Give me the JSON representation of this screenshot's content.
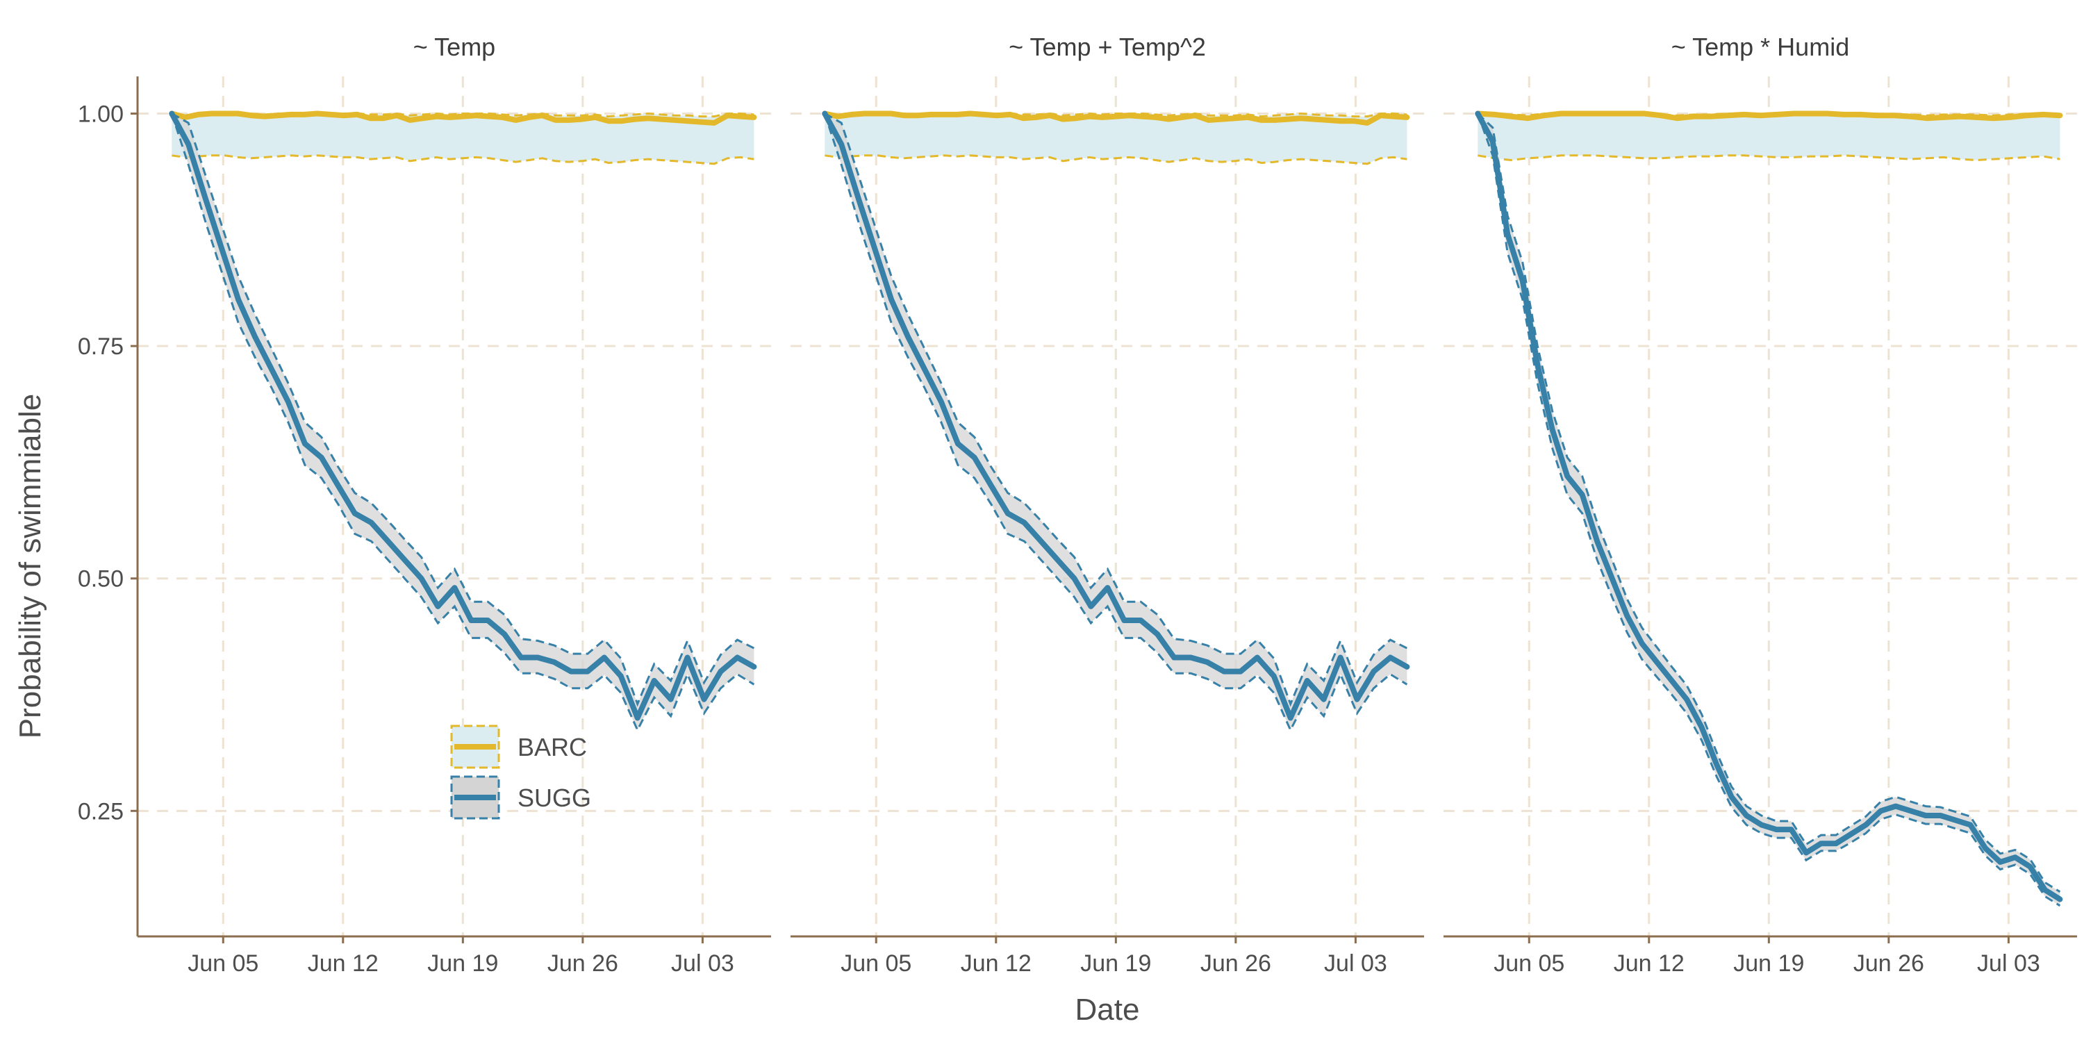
{
  "chart_data": {
    "type": "line",
    "facets": [
      "~ Temp",
      "~ Temp + Temp^2",
      "~ Temp * Humid"
    ],
    "xlabel": "Date",
    "ylabel": "Probability of swimmiable",
    "x_start": "2021-05-31",
    "x_ticks": [
      "Jun 05",
      "Jun 12",
      "Jun 19",
      "Jun 26",
      "Jul 03"
    ],
    "y_ticks": [
      "0.25",
      "0.50",
      "0.75",
      "1.00"
    ],
    "ylim": [
      0.115,
      1.04
    ],
    "grid": true,
    "legend": {
      "position": "inside bottom-left of first panel",
      "entries": [
        "BARC",
        "SUGG"
      ]
    },
    "colors": {
      "BARC": "#e3b92b",
      "SUGG": "#3781a8",
      "BARC_band": "#dcedf2",
      "SUGG_band": "#d4d4d4",
      "axis": "#8b6d4f",
      "grid": "#eee2d2"
    },
    "series_names": [
      "BARC",
      "SUGG"
    ],
    "panels": [
      {
        "BARC": {
          "mean": [
            1.0,
            0.996,
            0.999,
            1.0,
            1.0,
            1.0,
            0.998,
            0.997,
            0.998,
            0.999,
            0.999,
            1.0,
            0.999,
            0.998,
            0.999,
            0.995,
            0.995,
            0.998,
            0.993,
            0.995,
            0.997,
            0.996,
            0.997,
            0.998,
            0.997,
            0.996,
            0.993,
            0.996,
            0.998,
            0.993,
            0.993,
            0.994,
            0.996,
            0.992,
            0.992,
            0.994,
            0.995,
            0.994,
            0.993,
            0.992,
            0.991,
            0.99,
            0.998,
            0.997,
            0.996
          ],
          "lower": [
            0.955,
            0.953,
            0.954,
            0.955,
            0.955,
            0.953,
            0.952,
            0.953,
            0.954,
            0.955,
            0.954,
            0.955,
            0.954,
            0.953,
            0.953,
            0.951,
            0.952,
            0.953,
            0.949,
            0.951,
            0.953,
            0.951,
            0.952,
            0.953,
            0.952,
            0.95,
            0.948,
            0.95,
            0.952,
            0.949,
            0.948,
            0.949,
            0.951,
            0.947,
            0.948,
            0.95,
            0.951,
            0.95,
            0.949,
            0.948,
            0.947,
            0.946,
            0.952,
            0.953,
            0.951
          ],
          "upper": [
            1.0,
            0.998,
            1.0,
            1.0,
            1.0,
            1.0,
            1.0,
            0.999,
            1.0,
            1.0,
            1.0,
            1.0,
            1.0,
            1.0,
            1.0,
            0.999,
            0.999,
            1.0,
            0.998,
            0.999,
            1.0,
            0.999,
            1.0,
            1.0,
            1.0,
            0.999,
            0.998,
            0.999,
            1.0,
            0.998,
            0.998,
            0.998,
            0.999,
            0.997,
            0.998,
            0.999,
            1.0,
            0.999,
            0.998,
            0.998,
            0.997,
            0.997,
            1.0,
            1.0,
            0.999
          ]
        },
        "SUGG": {
          "mean": [
            1.0,
            0.967,
            0.91,
            0.855,
            0.8,
            0.76,
            0.725,
            0.69,
            0.645,
            0.63,
            0.6,
            0.57,
            0.56,
            0.54,
            0.52,
            0.5,
            0.47,
            0.49,
            0.455,
            0.455,
            0.44,
            0.415,
            0.415,
            0.41,
            0.4,
            0.4,
            0.415,
            0.395,
            0.35,
            0.39,
            0.37,
            0.415,
            0.37,
            0.4,
            0.415,
            0.405
          ],
          "lower": [
            1.0,
            0.945,
            0.885,
            0.83,
            0.775,
            0.738,
            0.705,
            0.668,
            0.622,
            0.608,
            0.58,
            0.548,
            0.54,
            0.52,
            0.5,
            0.48,
            0.452,
            0.47,
            0.436,
            0.436,
            0.42,
            0.398,
            0.398,
            0.392,
            0.382,
            0.382,
            0.396,
            0.377,
            0.337,
            0.372,
            0.352,
            0.397,
            0.355,
            0.382,
            0.397,
            0.386
          ],
          "upper": [
            1.0,
            0.99,
            0.935,
            0.88,
            0.825,
            0.784,
            0.747,
            0.71,
            0.668,
            0.652,
            0.62,
            0.592,
            0.581,
            0.562,
            0.542,
            0.523,
            0.49,
            0.51,
            0.475,
            0.475,
            0.461,
            0.435,
            0.433,
            0.428,
            0.419,
            0.419,
            0.434,
            0.414,
            0.365,
            0.408,
            0.39,
            0.433,
            0.388,
            0.418,
            0.434,
            0.425
          ]
        }
      },
      {
        "BARC": {
          "mean": [
            1.0,
            0.997,
            0.999,
            1.0,
            1.0,
            1.0,
            0.998,
            0.998,
            0.999,
            0.999,
            0.999,
            1.0,
            0.999,
            0.998,
            0.999,
            0.995,
            0.996,
            0.998,
            0.994,
            0.995,
            0.997,
            0.996,
            0.997,
            0.998,
            0.997,
            0.996,
            0.994,
            0.996,
            0.998,
            0.993,
            0.994,
            0.995,
            0.996,
            0.993,
            0.993,
            0.994,
            0.995,
            0.994,
            0.993,
            0.992,
            0.992,
            0.99,
            0.998,
            0.997,
            0.996
          ],
          "lower": [
            0.955,
            0.953,
            0.954,
            0.955,
            0.955,
            0.953,
            0.952,
            0.953,
            0.954,
            0.955,
            0.954,
            0.955,
            0.954,
            0.953,
            0.953,
            0.951,
            0.952,
            0.953,
            0.949,
            0.951,
            0.953,
            0.951,
            0.952,
            0.953,
            0.952,
            0.95,
            0.948,
            0.95,
            0.952,
            0.949,
            0.948,
            0.949,
            0.951,
            0.947,
            0.948,
            0.95,
            0.951,
            0.95,
            0.949,
            0.948,
            0.947,
            0.946,
            0.952,
            0.953,
            0.951
          ],
          "upper": [
            1.0,
            0.998,
            1.0,
            1.0,
            1.0,
            1.0,
            1.0,
            0.999,
            1.0,
            1.0,
            1.0,
            1.0,
            1.0,
            1.0,
            1.0,
            0.999,
            0.999,
            1.0,
            0.998,
            0.999,
            1.0,
            0.999,
            1.0,
            1.0,
            1.0,
            0.999,
            0.998,
            0.999,
            1.0,
            0.998,
            0.998,
            0.998,
            0.999,
            0.997,
            0.998,
            0.999,
            1.0,
            0.999,
            0.998,
            0.998,
            0.997,
            0.997,
            1.0,
            1.0,
            0.999
          ]
        },
        "SUGG": {
          "mean": [
            1.0,
            0.967,
            0.91,
            0.855,
            0.8,
            0.76,
            0.725,
            0.69,
            0.645,
            0.63,
            0.6,
            0.57,
            0.56,
            0.54,
            0.52,
            0.5,
            0.47,
            0.49,
            0.455,
            0.455,
            0.44,
            0.415,
            0.415,
            0.41,
            0.4,
            0.4,
            0.415,
            0.395,
            0.35,
            0.39,
            0.37,
            0.415,
            0.37,
            0.4,
            0.415,
            0.405
          ],
          "lower": [
            1.0,
            0.945,
            0.885,
            0.83,
            0.775,
            0.738,
            0.705,
            0.668,
            0.622,
            0.608,
            0.58,
            0.548,
            0.54,
            0.52,
            0.5,
            0.48,
            0.452,
            0.47,
            0.436,
            0.436,
            0.42,
            0.398,
            0.398,
            0.392,
            0.382,
            0.382,
            0.396,
            0.377,
            0.337,
            0.372,
            0.352,
            0.397,
            0.355,
            0.382,
            0.397,
            0.386
          ],
          "upper": [
            1.0,
            0.99,
            0.935,
            0.88,
            0.825,
            0.784,
            0.747,
            0.71,
            0.668,
            0.652,
            0.62,
            0.592,
            0.581,
            0.562,
            0.542,
            0.523,
            0.49,
            0.51,
            0.475,
            0.475,
            0.461,
            0.435,
            0.433,
            0.428,
            0.419,
            0.419,
            0.434,
            0.414,
            0.365,
            0.408,
            0.39,
            0.433,
            0.388,
            0.418,
            0.434,
            0.425
          ]
        }
      },
      {
        "BARC": {
          "mean": [
            1.0,
            0.999,
            0.997,
            0.995,
            0.998,
            1.0,
            1.0,
            1.0,
            1.0,
            1.0,
            1.0,
            0.998,
            0.995,
            0.997,
            0.997,
            0.998,
            0.999,
            0.998,
            0.999,
            1.0,
            1.0,
            1.0,
            0.999,
            0.999,
            0.998,
            0.998,
            0.997,
            0.995,
            0.996,
            0.997,
            0.996,
            0.995,
            0.996,
            0.998,
            0.999,
            0.998
          ],
          "lower": [
            0.955,
            0.952,
            0.95,
            0.952,
            0.953,
            0.955,
            0.955,
            0.955,
            0.954,
            0.953,
            0.952,
            0.952,
            0.953,
            0.954,
            0.954,
            0.955,
            0.955,
            0.954,
            0.953,
            0.953,
            0.954,
            0.954,
            0.955,
            0.954,
            0.953,
            0.952,
            0.951,
            0.952,
            0.953,
            0.951,
            0.95,
            0.951,
            0.952,
            0.953,
            0.954,
            0.951
          ],
          "upper": [
            1.0,
            1.0,
            0.999,
            0.998,
            1.0,
            1.0,
            1.0,
            1.0,
            1.0,
            1.0,
            1.0,
            0.999,
            0.998,
            0.999,
            0.999,
            1.0,
            1.0,
            0.999,
            1.0,
            1.0,
            1.0,
            1.0,
            1.0,
            1.0,
            0.999,
            0.999,
            0.999,
            0.998,
            0.999,
            0.999,
            0.999,
            0.998,
            0.999,
            1.0,
            1.0,
            0.999
          ]
        },
        "SUGG": {
          "mean": [
            1.0,
            0.97,
            0.87,
            0.82,
            0.73,
            0.66,
            0.61,
            0.59,
            0.54,
            0.5,
            0.46,
            0.43,
            0.41,
            0.39,
            0.37,
            0.34,
            0.3,
            0.265,
            0.245,
            0.235,
            0.23,
            0.23,
            0.205,
            0.215,
            0.215,
            0.225,
            0.235,
            0.25,
            0.255,
            0.25,
            0.245,
            0.245,
            0.24,
            0.235,
            0.21,
            0.195,
            0.2,
            0.19,
            0.165,
            0.155
          ],
          "lower": [
            1.0,
            0.955,
            0.85,
            0.8,
            0.71,
            0.64,
            0.59,
            0.57,
            0.52,
            0.48,
            0.442,
            0.413,
            0.394,
            0.375,
            0.355,
            0.326,
            0.287,
            0.254,
            0.235,
            0.226,
            0.221,
            0.221,
            0.197,
            0.207,
            0.207,
            0.216,
            0.226,
            0.241,
            0.246,
            0.241,
            0.236,
            0.236,
            0.231,
            0.226,
            0.202,
            0.187,
            0.192,
            0.182,
            0.158,
            0.148
          ],
          "upper": [
            1.0,
            0.985,
            0.89,
            0.84,
            0.75,
            0.68,
            0.63,
            0.61,
            0.56,
            0.52,
            0.478,
            0.447,
            0.426,
            0.405,
            0.385,
            0.354,
            0.313,
            0.276,
            0.255,
            0.245,
            0.239,
            0.239,
            0.214,
            0.224,
            0.224,
            0.234,
            0.244,
            0.26,
            0.265,
            0.26,
            0.255,
            0.254,
            0.249,
            0.244,
            0.219,
            0.204,
            0.208,
            0.198,
            0.173,
            0.163
          ]
        }
      }
    ]
  }
}
